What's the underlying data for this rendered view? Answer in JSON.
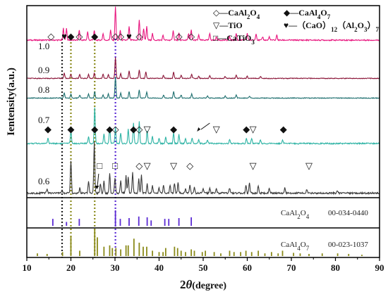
{
  "chart_data": {
    "type": "line",
    "xlabel_main": "2",
    "xlabel_theta": "θ",
    "xlabel_unit": "(degree)",
    "ylabel": "Ientensity(a.u.)",
    "xlim": [
      10,
      90
    ],
    "xticks": [
      10,
      20,
      30,
      40,
      50,
      60,
      70,
      80,
      90
    ],
    "legend": [
      {
        "symbol": "◇",
        "text": "—CaAl",
        "sub1": "2",
        "mid": "O",
        "sub2": "4"
      },
      {
        "symbol": "◆",
        "text": "—CaAl",
        "sub1": "4",
        "mid": "O",
        "sub2": "7"
      },
      {
        "symbol": "▽",
        "text": "—TiO"
      },
      {
        "symbol": "♥",
        "text": "—（CaO）",
        "sub1": "12",
        "mid": "（Al",
        "sub2": "2",
        "tail": "O",
        "sub3": "3",
        "end": "）",
        "sub4": "7"
      },
      {
        "symbol": "□",
        "text": "—CaTiO",
        "sub1": "3"
      }
    ],
    "series": [
      {
        "name": "1.0",
        "color": "#e8157e",
        "peaks": [
          [
            18.3,
            0.35
          ],
          [
            19.0,
            0.35
          ],
          [
            21.9,
            0.3
          ],
          [
            23.8,
            0.25
          ],
          [
            25.3,
            0.3
          ],
          [
            27.3,
            0.2
          ],
          [
            29.0,
            0.3
          ],
          [
            30.1,
            1.0
          ],
          [
            31.2,
            0.3
          ],
          [
            33.2,
            0.4
          ],
          [
            35.5,
            0.6
          ],
          [
            36.5,
            0.35
          ],
          [
            37.2,
            0.4
          ],
          [
            38.5,
            0.2
          ],
          [
            40.9,
            0.15
          ],
          [
            43.2,
            0.3
          ],
          [
            44.5,
            0.2
          ],
          [
            46.7,
            0.2
          ],
          [
            47.3,
            0.3
          ],
          [
            49.0,
            0.15
          ],
          [
            51.5,
            0.2
          ],
          [
            53.0,
            0.1
          ],
          [
            56.0,
            0.1
          ],
          [
            57.5,
            0.2
          ],
          [
            60.0,
            0.2
          ],
          [
            62.0,
            0.2
          ],
          [
            63.5,
            0.1
          ],
          [
            65.0,
            0.1
          ],
          [
            66.7,
            0.15
          ]
        ]
      },
      {
        "name": "0.9",
        "color": "#8b1538",
        "peaks": [
          [
            18.5,
            0.25
          ],
          [
            20.0,
            0.2
          ],
          [
            22.0,
            0.2
          ],
          [
            24.0,
            0.2
          ],
          [
            25.3,
            0.25
          ],
          [
            27.3,
            0.2
          ],
          [
            28.5,
            0.2
          ],
          [
            30.1,
            1.0
          ],
          [
            31.3,
            0.25
          ],
          [
            33.2,
            0.35
          ],
          [
            35.5,
            0.4
          ],
          [
            37.0,
            0.3
          ],
          [
            41.0,
            0.15
          ],
          [
            43.3,
            0.3
          ],
          [
            45.0,
            0.15
          ],
          [
            47.4,
            0.2
          ],
          [
            49.0,
            0.1
          ],
          [
            51.5,
            0.15
          ],
          [
            55.0,
            0.1
          ],
          [
            57.5,
            0.15
          ],
          [
            60.0,
            0.1
          ],
          [
            63.0,
            0.1
          ]
        ]
      },
      {
        "name": "0.8",
        "color": "#1e6f6f",
        "peaks": [
          [
            18.5,
            0.25
          ],
          [
            20.0,
            0.2
          ],
          [
            22.0,
            0.15
          ],
          [
            24.0,
            0.2
          ],
          [
            25.4,
            0.3
          ],
          [
            27.3,
            0.15
          ],
          [
            28.5,
            0.2
          ],
          [
            30.1,
            1.0
          ],
          [
            31.3,
            0.25
          ],
          [
            33.2,
            0.3
          ],
          [
            35.5,
            0.4
          ],
          [
            37.2,
            0.3
          ],
          [
            41.0,
            0.15
          ],
          [
            43.3,
            0.3
          ],
          [
            45.0,
            0.15
          ],
          [
            47.4,
            0.2
          ],
          [
            51.0,
            0.1
          ],
          [
            55.0,
            0.1
          ],
          [
            57.5,
            0.15
          ],
          [
            60.5,
            0.1
          ]
        ]
      },
      {
        "name": "0.7",
        "color": "#2db3a4",
        "peaks": [
          [
            14.8,
            0.15
          ],
          [
            20.0,
            0.35
          ],
          [
            24.0,
            0.2
          ],
          [
            25.4,
            1.0
          ],
          [
            27.5,
            0.25
          ],
          [
            28.8,
            0.45
          ],
          [
            30.1,
            0.45
          ],
          [
            31.3,
            0.3
          ],
          [
            33.0,
            0.4
          ],
          [
            34.2,
            0.55
          ],
          [
            35.5,
            0.6
          ],
          [
            37.3,
            0.35
          ],
          [
            38.5,
            0.2
          ],
          [
            40.0,
            0.15
          ],
          [
            41.5,
            0.2
          ],
          [
            43.3,
            0.3
          ],
          [
            44.5,
            0.25
          ],
          [
            46.0,
            0.15
          ],
          [
            47.5,
            0.15
          ],
          [
            49.0,
            0.1
          ],
          [
            51.0,
            0.1
          ],
          [
            56.0,
            0.1
          ],
          [
            59.8,
            0.15
          ],
          [
            61.0,
            0.15
          ],
          [
            63.0,
            0.1
          ],
          [
            68.0,
            0.1
          ]
        ]
      },
      {
        "name": "0.6",
        "color": "#3a3a3a",
        "peaks": [
          [
            14.6,
            0.08
          ],
          [
            18.0,
            0.05
          ],
          [
            20.0,
            0.65
          ],
          [
            22.0,
            0.1
          ],
          [
            24.0,
            0.25
          ],
          [
            25.3,
            1.0
          ],
          [
            26.7,
            0.2
          ],
          [
            27.5,
            0.25
          ],
          [
            28.8,
            0.4
          ],
          [
            30.0,
            0.3
          ],
          [
            31.3,
            0.25
          ],
          [
            32.5,
            0.35
          ],
          [
            33.0,
            0.32
          ],
          [
            34.0,
            0.4
          ],
          [
            35.4,
            0.3
          ],
          [
            36.0,
            0.35
          ],
          [
            37.3,
            0.2
          ],
          [
            38.5,
            0.15
          ],
          [
            40.0,
            0.1
          ],
          [
            41.0,
            0.15
          ],
          [
            42.5,
            0.15
          ],
          [
            43.5,
            0.2
          ],
          [
            44.3,
            0.2
          ],
          [
            46.0,
            0.1
          ],
          [
            47.0,
            0.15
          ],
          [
            48.0,
            0.12
          ],
          [
            50.0,
            0.1
          ],
          [
            51.5,
            0.1
          ],
          [
            53.0,
            0.08
          ],
          [
            56.0,
            0.1
          ],
          [
            59.7,
            0.15
          ],
          [
            60.5,
            0.2
          ],
          [
            62.5,
            0.15
          ],
          [
            65.0,
            0.1
          ],
          [
            68.5,
            0.1
          ],
          [
            73.5,
            0.08
          ],
          [
            80.5,
            0.05
          ]
        ]
      }
    ],
    "reference_patterns": [
      {
        "label": "CaAl",
        "sub1": "2",
        "mid": "O",
        "sub2": "4",
        "code": "00-034-0440",
        "color": "#5b2bd4",
        "sticks": [
          [
            15.9,
            0.45
          ],
          [
            19.0,
            0.25
          ],
          [
            21.9,
            0.45
          ],
          [
            30.1,
            1.0
          ],
          [
            31.2,
            0.45
          ],
          [
            33.2,
            0.5
          ],
          [
            35.4,
            0.6
          ],
          [
            37.3,
            0.55
          ],
          [
            38.2,
            0.35
          ],
          [
            41.3,
            0.45
          ],
          [
            42.2,
            0.45
          ],
          [
            44.5,
            0.5
          ],
          [
            47.3,
            0.55
          ]
        ]
      },
      {
        "label": "CaAl",
        "sub1": "4",
        "mid": "O",
        "sub2": "7",
        "code": "00-023-1037",
        "color": "#8a8a1a",
        "sticks": [
          [
            12.4,
            0.1
          ],
          [
            14.6,
            0.08
          ],
          [
            18.1,
            0.15
          ],
          [
            20.0,
            0.75
          ],
          [
            22.0,
            0.2
          ],
          [
            25.4,
            1.0
          ],
          [
            26.0,
            0.7
          ],
          [
            27.5,
            0.35
          ],
          [
            28.8,
            0.4
          ],
          [
            29.4,
            0.3
          ],
          [
            30.2,
            0.3
          ],
          [
            31.3,
            0.25
          ],
          [
            32.5,
            0.4
          ],
          [
            33.0,
            0.4
          ],
          [
            34.3,
            0.65
          ],
          [
            35.5,
            0.5
          ],
          [
            36.4,
            0.35
          ],
          [
            37.2,
            0.35
          ],
          [
            38.5,
            0.2
          ],
          [
            40.0,
            0.15
          ],
          [
            40.9,
            0.15
          ],
          [
            41.5,
            0.3
          ],
          [
            43.5,
            0.35
          ],
          [
            44.2,
            0.3
          ],
          [
            45.0,
            0.2
          ],
          [
            46.0,
            0.15
          ],
          [
            47.3,
            0.25
          ],
          [
            48.0,
            0.2
          ],
          [
            49.8,
            0.15
          ],
          [
            50.5,
            0.2
          ],
          [
            52.5,
            0.15
          ],
          [
            54.0,
            0.1
          ],
          [
            56.0,
            0.2
          ],
          [
            57.0,
            0.15
          ],
          [
            58.5,
            0.15
          ],
          [
            59.7,
            0.2
          ],
          [
            61.0,
            0.15
          ],
          [
            62.5,
            0.2
          ],
          [
            64.0,
            0.1
          ],
          [
            65.5,
            0.15
          ],
          [
            67.0,
            0.1
          ],
          [
            68.0,
            0.2
          ],
          [
            70.5,
            0.12
          ],
          [
            72.0,
            0.1
          ],
          [
            74.0,
            0.08
          ],
          [
            77.0,
            0.1
          ],
          [
            80.5,
            0.1
          ],
          [
            83.0,
            0.08
          ],
          [
            86.0,
            0.05
          ]
        ]
      }
    ],
    "guide_lines": [
      {
        "x": 18.0,
        "color": "#222222"
      },
      {
        "x": 20.0,
        "color": "#8a8a1a"
      },
      {
        "x": 25.4,
        "color": "#8a8a1a"
      },
      {
        "x": 30.1,
        "color": "#5b2bd4"
      }
    ],
    "annotations": [
      {
        "series": "1.0",
        "symbol": "◇",
        "x": 15.5
      },
      {
        "series": "1.0",
        "symbol": "♥",
        "x": 18.5
      },
      {
        "series": "1.0",
        "symbol": "◆",
        "x": 20.0
      },
      {
        "series": "1.0",
        "symbol": "◇",
        "x": 21.9
      },
      {
        "series": "1.0",
        "symbol": "◆",
        "x": 25.4
      },
      {
        "series": "1.0",
        "symbol": "◇",
        "x": 30.1
      },
      {
        "series": "1.0",
        "symbol": "◇",
        "x": 31.3
      },
      {
        "series": "1.0",
        "symbol": "♥",
        "x": 33.2
      },
      {
        "series": "1.0",
        "symbol": "◇",
        "x": 35.5
      },
      {
        "series": "1.0",
        "symbol": "◇",
        "x": 44.5
      },
      {
        "series": "1.0",
        "symbol": "◇",
        "x": 47.3
      },
      {
        "series": "0.7",
        "symbol": "◆",
        "x": 14.8
      },
      {
        "series": "0.7",
        "symbol": "◆",
        "x": 20.0
      },
      {
        "series": "0.7",
        "symbol": "◆",
        "x": 25.4
      },
      {
        "series": "0.7",
        "symbol": "◆",
        "x": 28.8
      },
      {
        "series": "0.7",
        "symbol": "◇",
        "x": 30.1
      },
      {
        "series": "0.7",
        "symbol": "◆",
        "x": 34.2
      },
      {
        "series": "0.7",
        "symbol": "◇",
        "x": 35.5
      },
      {
        "series": "0.7",
        "symbol": "▽",
        "x": 37.3
      },
      {
        "series": "0.7",
        "symbol": "◆",
        "x": 43.3
      },
      {
        "series": "0.7",
        "symbol": "▽",
        "x": 53.0
      },
      {
        "series": "0.7",
        "symbol": "◆",
        "x": 59.8
      },
      {
        "series": "0.7",
        "symbol": "▽",
        "x": 61.3
      },
      {
        "series": "0.7",
        "symbol": "◆",
        "x": 68.2
      },
      {
        "series": "0.6",
        "symbol": "□",
        "x": 26.5
      },
      {
        "series": "0.6",
        "symbol": "□",
        "x": 30.0
      },
      {
        "series": "0.6",
        "symbol": "◇",
        "x": 35.5
      },
      {
        "series": "0.6",
        "symbol": "▽",
        "x": 37.3
      },
      {
        "series": "0.6",
        "symbol": "▽",
        "x": 43.3
      },
      {
        "series": "0.6",
        "symbol": "◇",
        "x": 47.0
      },
      {
        "series": "0.6",
        "symbol": "▽",
        "x": 61.3
      },
      {
        "series": "0.6",
        "symbol": "▽",
        "x": 74.0
      }
    ]
  }
}
